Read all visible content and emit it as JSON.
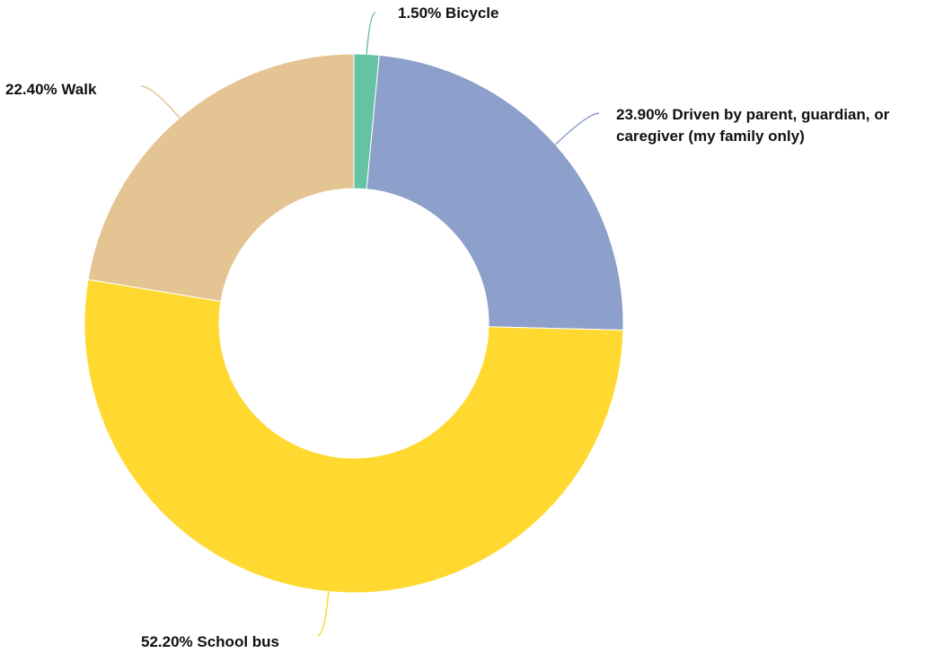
{
  "chart_data": {
    "type": "pie",
    "donut": true,
    "title": "",
    "slices": [
      {
        "label": "1.50% Bicycle",
        "category": "Bicycle",
        "value": 1.5,
        "color": "#66c2a5"
      },
      {
        "label": "23.90% Driven by parent, guardian, or caregiver (my family only)",
        "category": "Driven by parent, guardian, or caregiver (my family only)",
        "value": 23.9,
        "color": "#8da0cb"
      },
      {
        "label": "52.20% School bus",
        "category": "School bus",
        "value": 52.2,
        "color": "#ffd92f"
      },
      {
        "label": "22.40% Walk",
        "category": "Walk",
        "value": 22.4,
        "color": "#e5c494"
      }
    ],
    "start_angle": "12 o'clock",
    "direction": "clockwise",
    "legend": "none"
  }
}
